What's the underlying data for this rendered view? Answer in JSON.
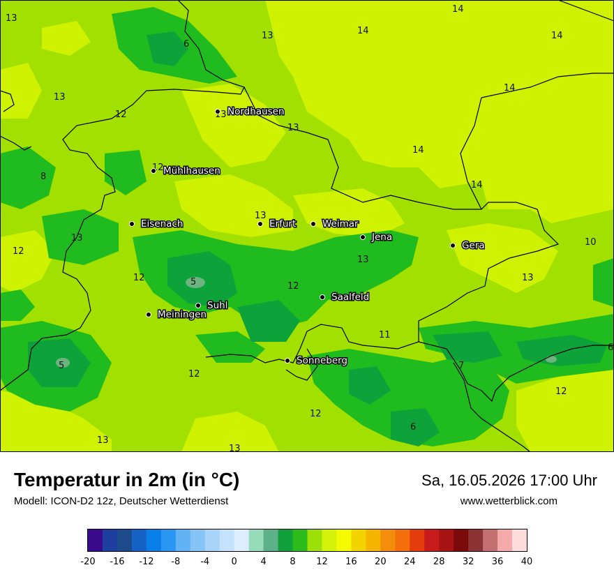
{
  "header": {
    "title": "Temperatur in 2m (in °C)",
    "subtitle": "Modell: ICON-D2 12z, Deutscher Wetterdienst",
    "datetime": "Sa, 16.05.2026 17:00 Uhr",
    "website": "www.wetterblick.com"
  },
  "colors": {
    "lime_12_14": "#cff200",
    "yellowgreen_10_12": "#a2e000",
    "green_8_10": "#1fbb1f",
    "darkgreen_6_8": "#0ea33a",
    "mint_4_6": "#6db37f",
    "border": "#000000",
    "background_frame": "#ffffff"
  },
  "cities": [
    {
      "name": "Nordhausen"
    },
    {
      "name": "Mühlhausen"
    },
    {
      "name": "Eisenach"
    },
    {
      "name": "Erfurt"
    },
    {
      "name": "Weimar"
    },
    {
      "name": "Jena"
    },
    {
      "name": "Gera"
    },
    {
      "name": "Suhl"
    },
    {
      "name": "Meiningen"
    },
    {
      "name": "Saalfeld"
    },
    {
      "name": "Sonneberg"
    }
  ],
  "temperature_labels": [
    "13",
    "6",
    "13",
    "14",
    "14",
    "14",
    "13",
    "12",
    "13",
    "14",
    "14",
    "12",
    "8",
    "14",
    "13",
    "13",
    "13",
    "10",
    "12",
    "12",
    "13",
    "5",
    "12",
    "13",
    "11",
    "5",
    "12",
    "7",
    "6",
    "12",
    "12",
    "6",
    "13",
    "13"
  ],
  "legend": {
    "ticks": [
      "-20",
      "-16",
      "-12",
      "-8",
      "-4",
      "0",
      "4",
      "8",
      "12",
      "16",
      "20",
      "24",
      "28",
      "32",
      "36",
      "40"
    ],
    "colors": [
      "#3a0a8c",
      "#1e3fa0",
      "#1c4a8c",
      "#1462c4",
      "#0a7ee8",
      "#2a96f4",
      "#62b2f6",
      "#86c4f8",
      "#a8d4fa",
      "#c4e2fc",
      "#dceefe",
      "#96dcba",
      "#5cb08a",
      "#12a03c",
      "#2cbc1c",
      "#9ce008",
      "#d2f20a",
      "#f4fa00",
      "#f4d400",
      "#f4b400",
      "#f48c0c",
      "#f46e0c",
      "#e43c0c",
      "#c81c1c",
      "#a81414",
      "#7c0a0a",
      "#8c3434",
      "#c47070",
      "#f4aaaa",
      "#fcdcdc"
    ]
  }
}
